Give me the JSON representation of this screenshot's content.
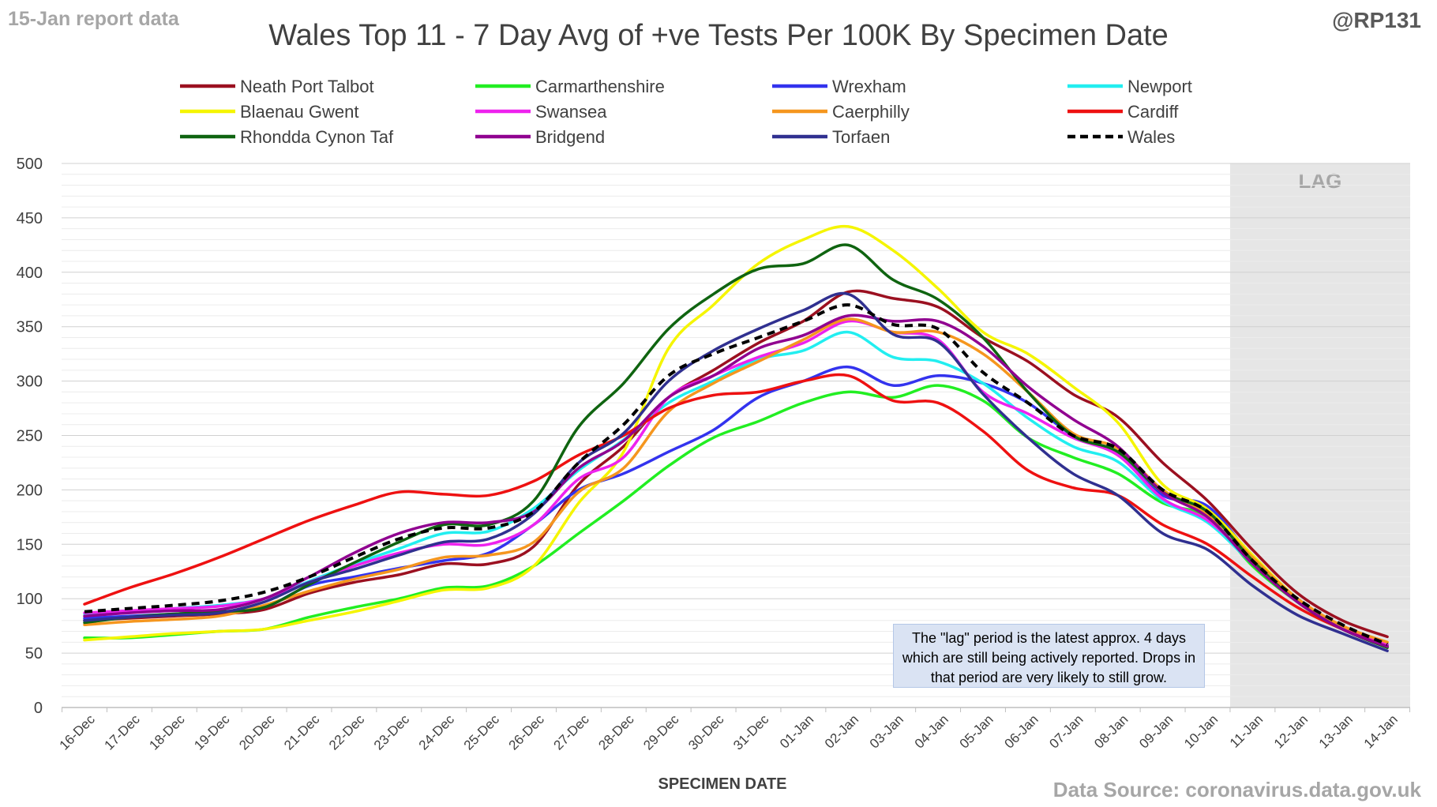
{
  "header": {
    "report_date": "15-Jan report data",
    "handle": "@RP131"
  },
  "footer": {
    "source": "Data Source: coronavirus.data.gov.uk"
  },
  "annotation": {
    "lag_label": "LAG",
    "note": "The \"lag\" period is the latest approx. 4 days which are still being actively reported.  Drops in that period are very likely to still grow."
  },
  "chart_data": {
    "type": "line",
    "title": "Wales Top 11 - 7 Day Avg of +ve Tests Per 100K By Specimen Date",
    "xlabel": "SPECIMEN DATE",
    "ylabel": "",
    "ylim": [
      0,
      500
    ],
    "yticks": [
      0,
      50,
      100,
      150,
      200,
      250,
      300,
      350,
      400,
      450,
      500
    ],
    "grid": true,
    "legend_position": "top",
    "lag_region": {
      "from": "11-Jan",
      "to": "14-Jan"
    },
    "x": [
      "16-Dec",
      "17-Dec",
      "18-Dec",
      "19-Dec",
      "20-Dec",
      "21-Dec",
      "22-Dec",
      "23-Dec",
      "24-Dec",
      "25-Dec",
      "26-Dec",
      "27-Dec",
      "28-Dec",
      "29-Dec",
      "30-Dec",
      "31-Dec",
      "01-Jan",
      "02-Jan",
      "03-Jan",
      "04-Jan",
      "05-Jan",
      "06-Jan",
      "07-Jan",
      "08-Jan",
      "09-Jan",
      "10-Jan",
      "11-Jan",
      "12-Jan",
      "13-Jan",
      "14-Jan"
    ],
    "series": [
      {
        "name": "Neath Port Talbot",
        "color": "#9b1020",
        "dash": false,
        "values": [
          80,
          82,
          84,
          86,
          90,
          105,
          115,
          122,
          132,
          132,
          148,
          205,
          240,
          285,
          310,
          335,
          355,
          382,
          376,
          368,
          340,
          318,
          288,
          267,
          225,
          190,
          145,
          105,
          80,
          65
        ]
      },
      {
        "name": "Carmarthenshire",
        "color": "#22ee22",
        "dash": false,
        "values": [
          64,
          64,
          67,
          70,
          72,
          83,
          92,
          100,
          110,
          112,
          130,
          160,
          190,
          222,
          248,
          263,
          280,
          290,
          285,
          296,
          282,
          248,
          230,
          215,
          188,
          175,
          130,
          97,
          72,
          58
        ]
      },
      {
        "name": "Wrexham",
        "color": "#3333ee",
        "dash": false,
        "values": [
          82,
          84,
          86,
          88,
          92,
          112,
          120,
          128,
          135,
          142,
          168,
          200,
          215,
          235,
          255,
          285,
          300,
          313,
          296,
          305,
          298,
          280,
          250,
          232,
          195,
          185,
          138,
          97,
          74,
          57
        ]
      },
      {
        "name": "Newport",
        "color": "#22eef0",
        "dash": false,
        "values": [
          86,
          88,
          91,
          94,
          100,
          116,
          132,
          146,
          160,
          162,
          183,
          218,
          246,
          280,
          300,
          320,
          328,
          345,
          322,
          318,
          298,
          266,
          240,
          226,
          190,
          170,
          132,
          97,
          72,
          56
        ]
      },
      {
        "name": "Blaenau Gwent",
        "color": "#f5f500",
        "dash": false,
        "values": [
          62,
          65,
          68,
          70,
          72,
          80,
          88,
          98,
          108,
          110,
          130,
          188,
          235,
          330,
          370,
          408,
          430,
          442,
          420,
          385,
          345,
          325,
          295,
          262,
          205,
          182,
          140,
          100,
          74,
          60
        ]
      },
      {
        "name": "Swansea",
        "color": "#ee22ee",
        "dash": false,
        "values": [
          87,
          89,
          91,
          93,
          100,
          115,
          130,
          142,
          150,
          150,
          168,
          210,
          230,
          285,
          305,
          322,
          335,
          355,
          345,
          338,
          290,
          270,
          248,
          232,
          192,
          172,
          135,
          98,
          74,
          58
        ]
      },
      {
        "name": "Caerphilly",
        "color": "#f5961e",
        "dash": false,
        "values": [
          76,
          79,
          81,
          84,
          94,
          107,
          118,
          127,
          138,
          140,
          152,
          198,
          220,
          272,
          298,
          318,
          338,
          357,
          345,
          345,
          325,
          290,
          252,
          238,
          200,
          178,
          138,
          100,
          75,
          60
        ]
      },
      {
        "name": "Cardiff",
        "color": "#ee1111",
        "dash": false,
        "values": [
          95,
          110,
          123,
          138,
          155,
          172,
          186,
          198,
          196,
          195,
          208,
          232,
          250,
          275,
          287,
          290,
          300,
          305,
          282,
          280,
          254,
          218,
          202,
          195,
          168,
          150,
          120,
          92,
          72,
          56
        ]
      },
      {
        "name": "Rhondda Cynon Taf",
        "color": "#0f6410",
        "dash": false,
        "values": [
          78,
          83,
          86,
          88,
          92,
          113,
          133,
          152,
          168,
          168,
          190,
          258,
          298,
          348,
          380,
          403,
          408,
          425,
          393,
          375,
          340,
          290,
          250,
          235,
          198,
          180,
          135,
          97,
          72,
          55
        ]
      },
      {
        "name": "Bridgend",
        "color": "#900090",
        "dash": false,
        "values": [
          84,
          87,
          89,
          90,
          100,
          120,
          142,
          160,
          170,
          170,
          180,
          220,
          245,
          285,
          305,
          330,
          342,
          360,
          355,
          355,
          332,
          295,
          265,
          240,
          198,
          175,
          132,
          97,
          72,
          56
        ]
      },
      {
        "name": "Torfaen",
        "color": "#303090",
        "dash": false,
        "values": [
          80,
          83,
          85,
          87,
          97,
          115,
          127,
          140,
          152,
          155,
          178,
          225,
          252,
          300,
          328,
          348,
          365,
          380,
          343,
          336,
          288,
          248,
          215,
          195,
          160,
          145,
          112,
          85,
          68,
          52
        ]
      },
      {
        "name": "Wales",
        "color": "#000000",
        "dash": true,
        "values": [
          88,
          91,
          94,
          98,
          106,
          120,
          138,
          155,
          165,
          165,
          180,
          225,
          260,
          305,
          325,
          340,
          355,
          370,
          352,
          348,
          308,
          280,
          250,
          238,
          200,
          180,
          135,
          100,
          76,
          58
        ]
      }
    ]
  }
}
